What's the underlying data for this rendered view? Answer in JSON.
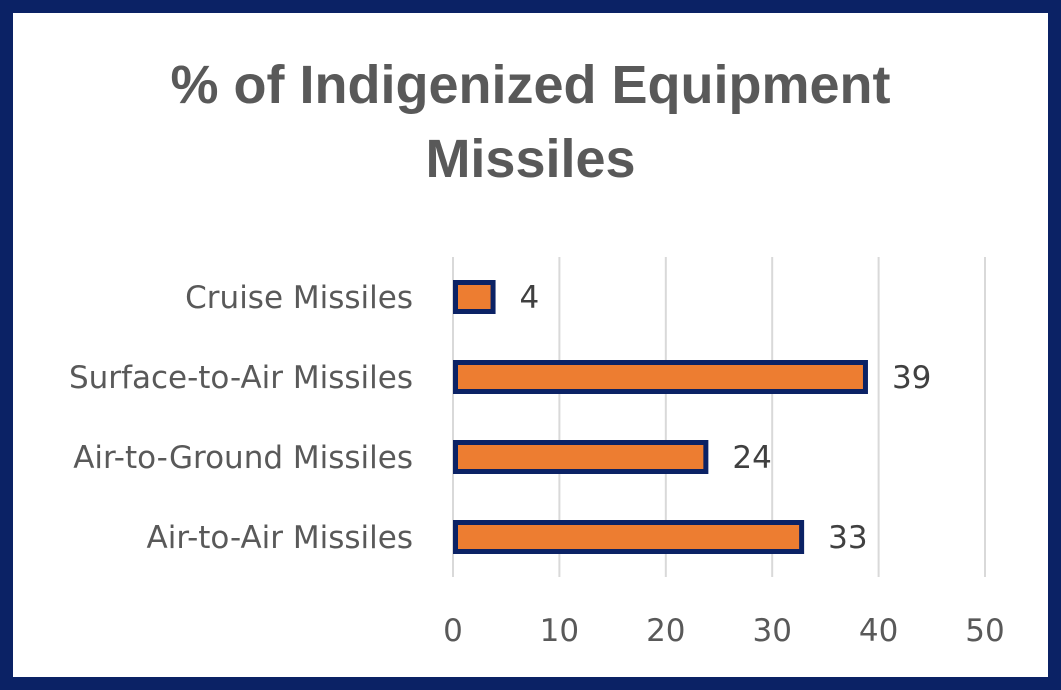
{
  "chart_data": {
    "type": "bar",
    "orientation": "horizontal",
    "title_lines": [
      "% of Indigenized Equipment",
      "Missiles"
    ],
    "categories": [
      "Cruise Missiles",
      "Surface-to-Air Missiles",
      "Air-to-Ground Missiles",
      "Air-to-Air Missiles"
    ],
    "values": [
      4,
      39,
      24,
      33
    ],
    "data_labels": [
      "4",
      "39",
      "24",
      "33"
    ],
    "xlim": [
      0,
      50
    ],
    "xticks": [
      0,
      10,
      20,
      30,
      40,
      50
    ],
    "xtick_labels": [
      "0",
      "10",
      "20",
      "30",
      "40",
      "50"
    ],
    "grid": "vertical",
    "legend": "none",
    "colors": {
      "bar_fill": "#ed7d31",
      "bar_border": "#0b2265",
      "frame": "#0b2265",
      "grid": "#d9d9d9",
      "text": "#595959"
    }
  }
}
